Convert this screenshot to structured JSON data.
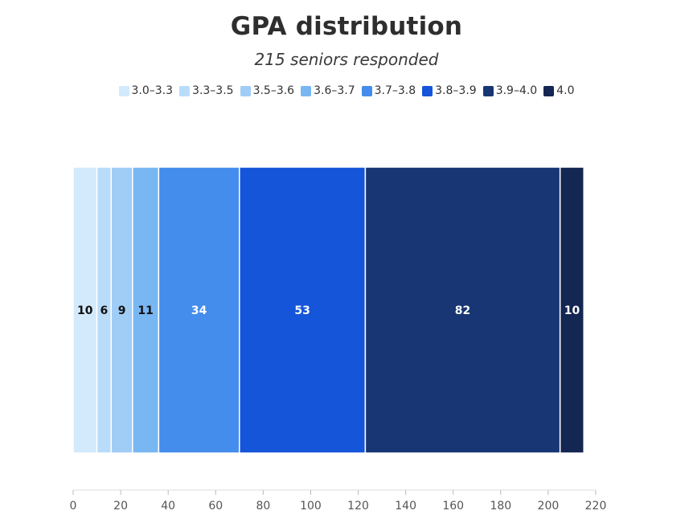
{
  "chart_data": {
    "type": "bar",
    "orientation": "horizontal-stacked",
    "title": "GPA distribution",
    "subtitle": "215 seniors responded",
    "legend_placement": "top",
    "series": [
      {
        "name": "3.0–3.3",
        "value": 10,
        "color": "#d3e9fc"
      },
      {
        "name": "3.3–3.5",
        "value": 6,
        "color": "#b9dcfa"
      },
      {
        "name": "3.5–3.6",
        "value": 9,
        "color": "#a0cdf6"
      },
      {
        "name": "3.6–3.7",
        "value": 11,
        "color": "#79b7f3"
      },
      {
        "name": "3.7–3.8",
        "value": 34,
        "color": "#448ded"
      },
      {
        "name": "3.8–3.9",
        "value": 53,
        "color": "#1555d9"
      },
      {
        "name": "3.9–4.0",
        "value": 82,
        "color": "#173673"
      },
      {
        "name": "4.0",
        "value": 10,
        "color": "#142652"
      }
    ],
    "xlim": [
      0,
      220
    ],
    "xticks": [
      0,
      20,
      40,
      60,
      80,
      100,
      120,
      140,
      160,
      180,
      200,
      220
    ],
    "grid": false
  }
}
